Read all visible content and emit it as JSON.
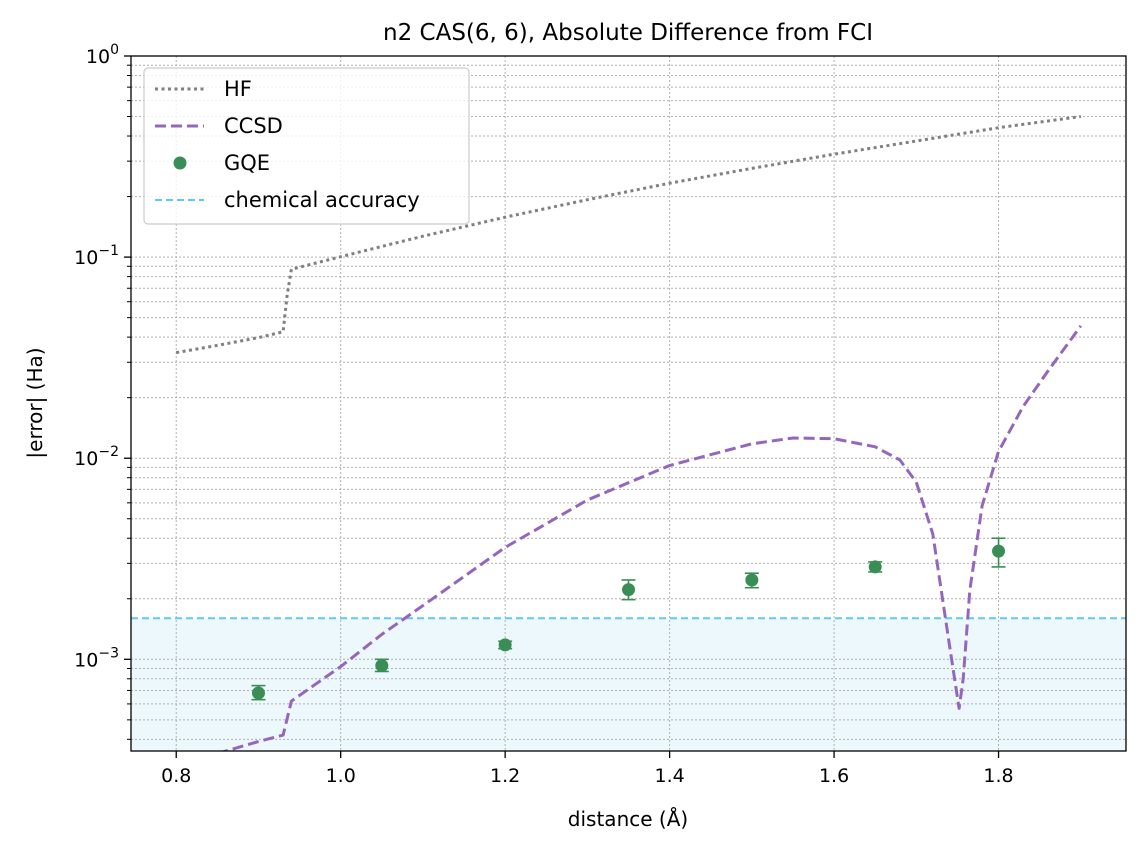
{
  "chart_data": {
    "type": "line",
    "title": "n2 CAS(6, 6), Absolute Difference from FCI",
    "xlabel": "distance (Å)",
    "ylabel": "|error| (Ha)",
    "yscale": "log",
    "xlim": [
      0.745,
      1.955
    ],
    "ylim": [
      0.00035,
      1.0
    ],
    "grid": true,
    "legend_position": "top-left",
    "colors": {
      "hf": "#808080",
      "ccsd": "#9467bd",
      "gqe": "#3a8e55",
      "chemical_accuracy": "#5fc8f5",
      "shade": "#edf8fc"
    },
    "x_ticks": [
      {
        "value": 0.8,
        "label": "0.8"
      },
      {
        "value": 1.0,
        "label": "1.0"
      },
      {
        "value": 1.2,
        "label": "1.2"
      },
      {
        "value": 1.4,
        "label": "1.4"
      },
      {
        "value": 1.6,
        "label": "1.6"
      },
      {
        "value": 1.8,
        "label": "1.8"
      }
    ],
    "y_ticks": [
      {
        "value": 0.001,
        "base": "10",
        "exp": "−3"
      },
      {
        "value": 0.01,
        "base": "10",
        "exp": "−2"
      },
      {
        "value": 0.1,
        "base": "10",
        "exp": "−1"
      },
      {
        "value": 1.0,
        "base": "10",
        "exp": "0"
      }
    ],
    "series": [
      {
        "name": "HF",
        "style": "dotted",
        "color_key": "hf",
        "points": [
          [
            0.8,
            0.0335
          ],
          [
            0.85,
            0.0364
          ],
          [
            0.9,
            0.0398
          ],
          [
            0.93,
            0.0425
          ],
          [
            0.935,
            0.065
          ],
          [
            0.94,
            0.087
          ],
          [
            1.0,
            0.1005
          ],
          [
            1.1,
            0.127
          ],
          [
            1.2,
            0.158
          ],
          [
            1.3,
            0.193
          ],
          [
            1.4,
            0.233
          ],
          [
            1.5,
            0.276
          ],
          [
            1.6,
            0.325
          ],
          [
            1.7,
            0.378
          ],
          [
            1.8,
            0.44
          ],
          [
            1.9,
            0.5
          ]
        ]
      },
      {
        "name": "CCSD",
        "style": "dashed",
        "color_key": "ccsd",
        "points": [
          [
            0.85,
            0.00034
          ],
          [
            0.9,
            0.00039
          ],
          [
            0.93,
            0.00042
          ],
          [
            0.94,
            0.00062
          ],
          [
            1.0,
            0.00092
          ],
          [
            1.05,
            0.00133
          ],
          [
            1.1,
            0.00185
          ],
          [
            1.2,
            0.0036
          ],
          [
            1.3,
            0.0062
          ],
          [
            1.4,
            0.0092
          ],
          [
            1.5,
            0.0118
          ],
          [
            1.55,
            0.0126
          ],
          [
            1.6,
            0.0125
          ],
          [
            1.65,
            0.0114
          ],
          [
            1.68,
            0.0098
          ],
          [
            1.7,
            0.0076
          ],
          [
            1.72,
            0.0042
          ],
          [
            1.74,
            0.0012
          ],
          [
            1.752,
            0.00057
          ],
          [
            1.757,
            0.0008
          ],
          [
            1.765,
            0.0022
          ],
          [
            1.78,
            0.0058
          ],
          [
            1.8,
            0.0108
          ],
          [
            1.83,
            0.0181
          ],
          [
            1.86,
            0.0271
          ],
          [
            1.9,
            0.0455
          ]
        ]
      }
    ],
    "gqe": {
      "name": "GQE",
      "color_key": "gqe",
      "points": [
        {
          "x": 0.9,
          "y": 0.00068,
          "lo": 0.00063,
          "hi": 0.00074
        },
        {
          "x": 1.05,
          "y": 0.00093,
          "lo": 0.00087,
          "hi": 0.001
        },
        {
          "x": 1.2,
          "y": 0.00118,
          "lo": 0.00113,
          "hi": 0.00123
        },
        {
          "x": 1.35,
          "y": 0.00222,
          "lo": 0.00198,
          "hi": 0.00248
        },
        {
          "x": 1.5,
          "y": 0.00248,
          "lo": 0.00227,
          "hi": 0.00268
        },
        {
          "x": 1.65,
          "y": 0.00288,
          "lo": 0.00272,
          "hi": 0.00305
        },
        {
          "x": 1.8,
          "y": 0.00345,
          "lo": 0.00288,
          "hi": 0.004
        }
      ]
    },
    "chemical_accuracy": {
      "name": "chemical accuracy",
      "y": 0.0016
    },
    "legend": [
      {
        "label": "HF",
        "kind": "dotted",
        "color_key": "hf"
      },
      {
        "label": "CCSD",
        "kind": "dashed",
        "color_key": "ccsd"
      },
      {
        "label": "GQE",
        "kind": "marker",
        "color_key": "gqe"
      },
      {
        "label": "chemical accuracy",
        "kind": "thin-dashed",
        "color_key": "chemical_accuracy"
      }
    ]
  }
}
